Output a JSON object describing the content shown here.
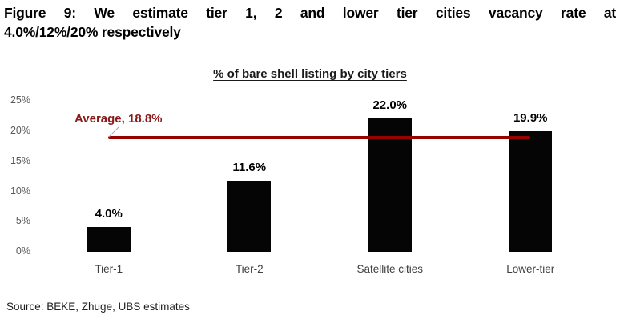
{
  "figure": {
    "title_line1": "Figure 9: We estimate tier 1, 2 and lower tier cities vacancy rate at",
    "title_line2": "4.0%/12%/20% respectively",
    "source": "Source: BEKE, Zhuge, UBS estimates"
  },
  "chart_data": {
    "type": "bar",
    "title": "% of bare shell listing by city tiers",
    "categories": [
      "Tier-1",
      "Tier-2",
      "Satellite cities",
      "Lower-tier"
    ],
    "values": [
      4.0,
      11.6,
      22.0,
      19.9
    ],
    "value_labels": [
      "4.0%",
      "11.6%",
      "22.0%",
      "19.9%"
    ],
    "xlabel": "",
    "ylabel": "",
    "ylim": [
      0,
      25
    ],
    "y_ticks": [
      25,
      20,
      15,
      10,
      5,
      0
    ],
    "y_tick_labels": [
      "25%",
      "20%",
      "15%",
      "10%",
      "5%",
      "0%"
    ],
    "grid": false,
    "legend": false,
    "average_line": {
      "value": 18.8,
      "label": "Average, 18.8%"
    },
    "colors": {
      "bar": "#050505",
      "average_line": "#990000",
      "average_text": "#8b1a1a",
      "tick_text": "#595959",
      "category_text": "#3f3f3f"
    }
  }
}
